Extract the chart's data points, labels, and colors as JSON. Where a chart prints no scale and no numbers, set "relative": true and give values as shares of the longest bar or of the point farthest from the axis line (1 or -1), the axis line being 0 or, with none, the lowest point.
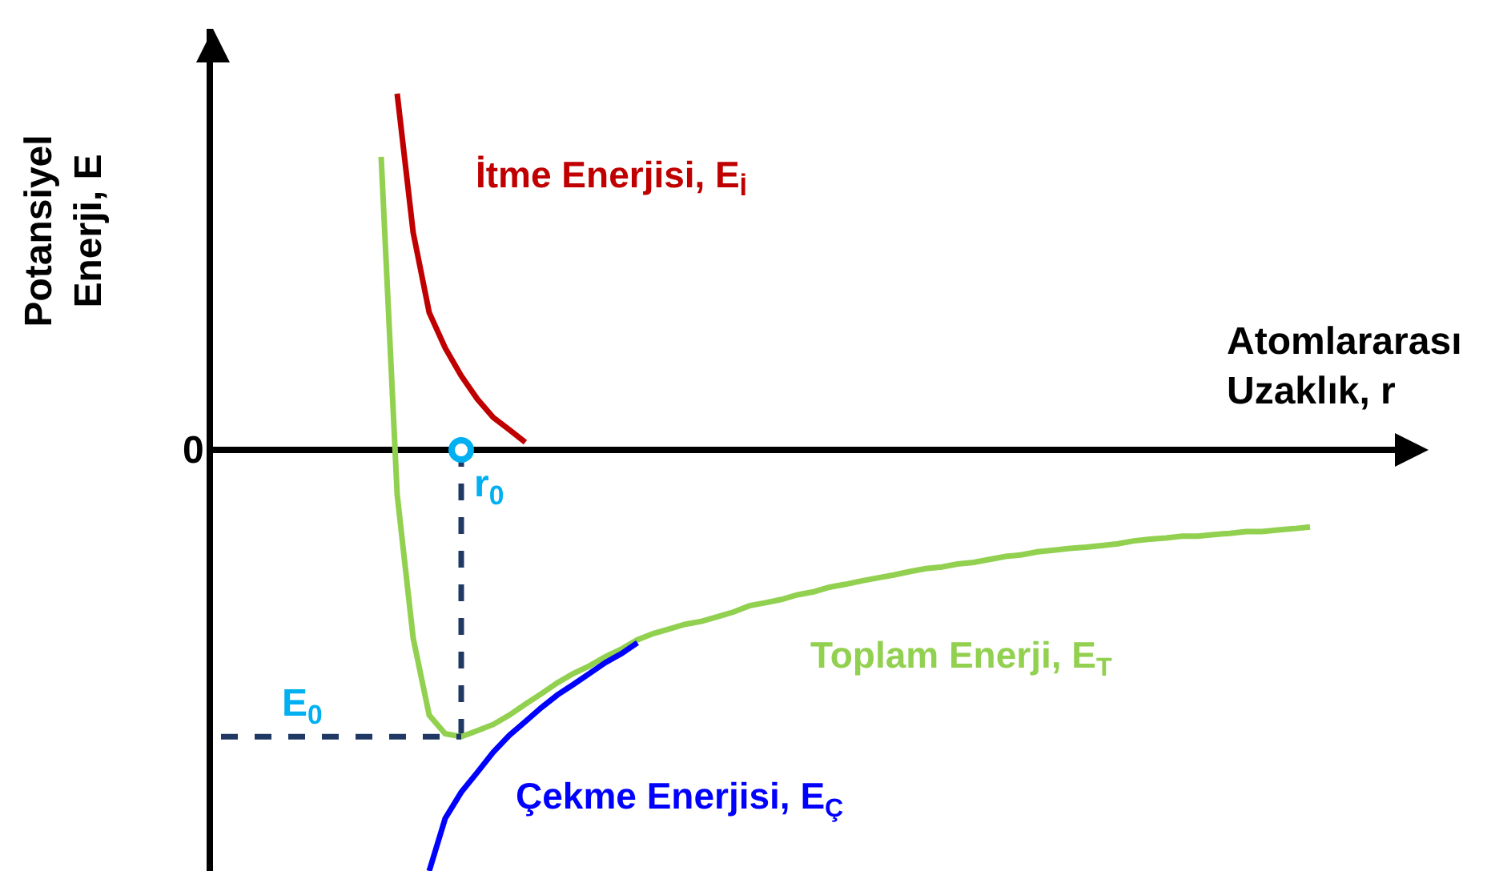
{
  "chart_data": {
    "type": "line",
    "relative": true,
    "xlabel": "Atomlararası\nUzaklık, r",
    "ylabel": "Potansiyel\nEnerji, E",
    "categories": [
      null,
      null,
      null,
      null,
      null,
      null,
      null,
      null,
      null,
      null,
      null,
      null,
      null,
      null,
      null,
      null,
      null,
      null,
      null,
      null,
      null,
      null,
      null,
      null,
      null,
      null,
      null,
      null,
      null,
      null,
      null,
      null,
      null,
      null,
      null,
      null,
      null,
      null,
      null,
      null,
      null,
      null,
      null,
      null,
      null,
      null,
      null,
      null,
      null,
      null,
      null,
      null,
      null,
      null,
      null,
      null,
      null,
      null,
      null,
      null,
      null,
      null,
      null,
      null,
      null,
      null,
      null,
      null,
      null,
      null,
      null,
      null,
      null,
      null,
      null
    ],
    "grid": false,
    "legend": false,
    "series": [
      {
        "name": "İtme Enerjisi, E$_{İ}$",
        "color": "#c00000",
        "marker": "none",
        "line_style": "solid",
        "values": [
          null,
          null,
          null,
          null,
          null,
          null,
          null,
          null,
          null,
          null,
          null,
          0.846,
          0.516,
          0.326,
          0.242,
          0.176,
          0.121,
          0.077,
          0.048,
          0.018,
          null,
          null,
          null,
          null,
          null,
          null,
          null,
          null,
          null,
          null,
          null,
          null,
          null,
          null,
          null,
          null,
          null,
          null,
          null,
          null,
          null,
          null,
          null,
          null,
          null,
          null,
          null,
          null,
          null,
          null,
          null,
          null,
          null,
          null,
          null,
          null,
          null,
          null,
          null,
          null,
          null,
          null,
          null,
          null,
          null,
          null,
          null,
          null,
          null,
          null,
          null,
          null,
          null,
          null,
          null
        ]
      },
      {
        "name": "Toplam Enerji, E$_{T}$",
        "color": "#92d050",
        "marker": "none",
        "line_style": "solid",
        "values": [
          null,
          null,
          null,
          null,
          null,
          null,
          null,
          null,
          null,
          null,
          0.696,
          -0.106,
          -0.447,
          -0.63,
          -0.674,
          -0.681,
          -0.667,
          -0.652,
          -0.63,
          -0.604,
          -0.579,
          -0.553,
          -0.531,
          -0.513,
          -0.491,
          -0.473,
          -0.451,
          -0.436,
          -0.425,
          -0.414,
          -0.407,
          -0.396,
          -0.385,
          -0.37,
          -0.363,
          -0.355,
          -0.344,
          -0.337,
          -0.326,
          -0.319,
          -0.311,
          -0.304,
          -0.297,
          -0.289,
          -0.282,
          -0.278,
          -0.271,
          -0.267,
          -0.26,
          -0.253,
          -0.249,
          -0.242,
          -0.238,
          -0.234,
          -0.231,
          -0.227,
          -0.223,
          -0.216,
          -0.212,
          -0.209,
          -0.205,
          -0.205,
          -0.201,
          -0.198,
          -0.194,
          -0.194,
          -0.19,
          -0.187,
          -0.183,
          null,
          null,
          null,
          null,
          null,
          null
        ]
      },
      {
        "name": "Çekme Enerjisi, E$_{Ç}$",
        "color": "#0000ff",
        "marker": "none",
        "line_style": "solid",
        "values": [
          null,
          null,
          null,
          null,
          null,
          null,
          null,
          null,
          null,
          null,
          null,
          null,
          null,
          -1,
          -0.875,
          -0.813,
          -0.766,
          -0.718,
          -0.678,
          -0.645,
          -0.612,
          -0.582,
          -0.557,
          -0.531,
          -0.505,
          -0.484,
          -0.458,
          null,
          null,
          null,
          null,
          null,
          null,
          null,
          null,
          null,
          null,
          null,
          null,
          null,
          null,
          null,
          null,
          null,
          null,
          null,
          null,
          null,
          null,
          null,
          null,
          null,
          null,
          null,
          null,
          null,
          null,
          null,
          null,
          null,
          null,
          null,
          null,
          null,
          null,
          null,
          null,
          null,
          null,
          null,
          null,
          null,
          null,
          null,
          null
        ]
      },
      {
        "color": "#1f3864",
        "marker": "none",
        "line_style": "dashed",
        "values": [
          -0.681,
          -0.681,
          -0.681,
          -0.681,
          -0.681,
          -0.681,
          -0.681,
          -0.681,
          -0.681,
          -0.681,
          -0.681,
          -0.681,
          -0.681,
          -0.681,
          -0.681,
          -0.681,
          null,
          null,
          null,
          null,
          null,
          null,
          null,
          null,
          null,
          null,
          null,
          null,
          null,
          null,
          null,
          null,
          null,
          null,
          null,
          null,
          null,
          null,
          null,
          null,
          null,
          null,
          null,
          null,
          null,
          null,
          null,
          null,
          null,
          null,
          null,
          null,
          null,
          null,
          null,
          null,
          null,
          null,
          null,
          null,
          null,
          null,
          null,
          null,
          null,
          null,
          null,
          null,
          null,
          null,
          null,
          null,
          null,
          null,
          null
        ]
      }
    ],
    "annotations": [
      "0",
      "E$_{0}$",
      "r$_{0}$"
    ]
  }
}
